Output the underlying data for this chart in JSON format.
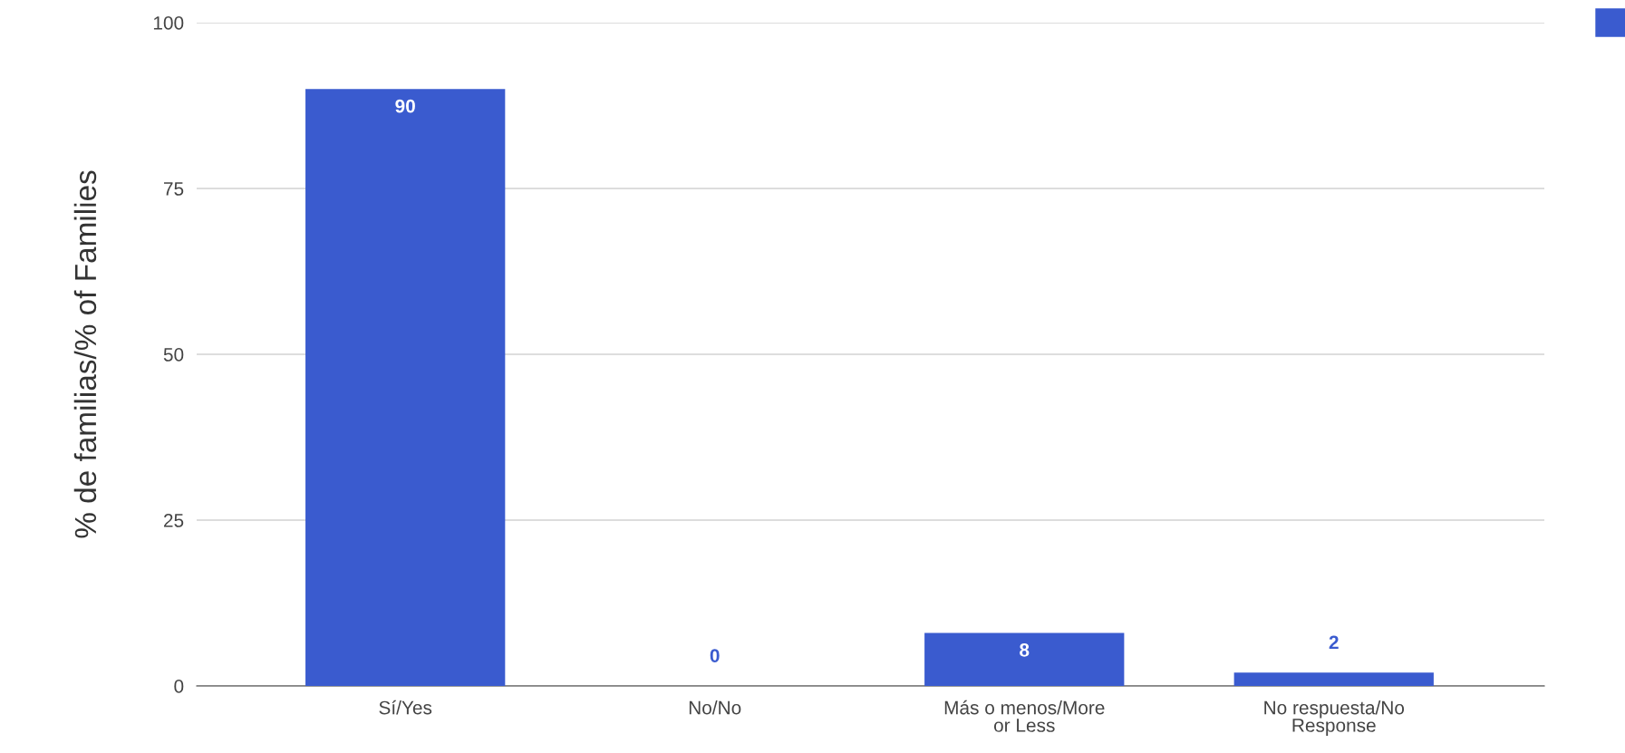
{
  "chart_data": {
    "type": "bar",
    "ylabel": "% de familias/% of Families",
    "categories": [
      "Sí/Yes",
      "No/No",
      "Más o menos/More or Less",
      "No respuesta/No Response"
    ],
    "values": [
      90,
      0,
      8,
      2
    ],
    "color": "#3a5bcf",
    "ylim": [
      0,
      100
    ],
    "yticks": [
      0,
      25,
      50,
      75,
      100
    ],
    "grid": "y",
    "data_labels": true
  }
}
